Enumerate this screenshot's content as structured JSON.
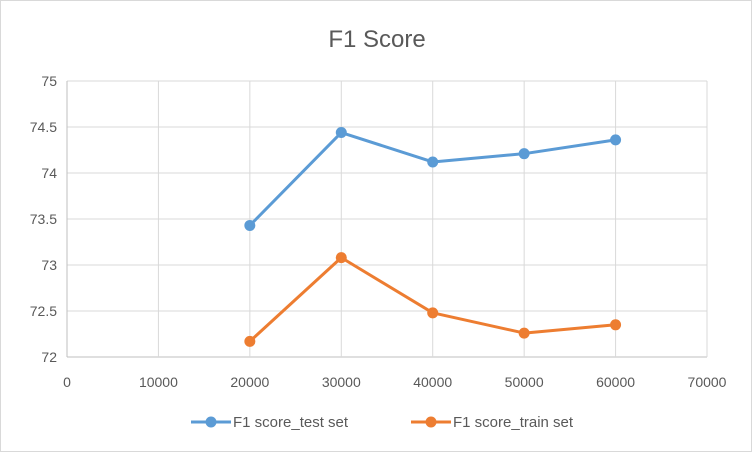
{
  "chart_data": {
    "type": "line",
    "title": "F1 Score",
    "xlabel": "",
    "ylabel": "",
    "xlim": [
      0,
      70000
    ],
    "ylim": [
      72,
      75
    ],
    "x_ticks": [
      0,
      10000,
      20000,
      30000,
      40000,
      50000,
      60000,
      70000
    ],
    "y_ticks": [
      72,
      72.5,
      73,
      73.5,
      74,
      74.5,
      75
    ],
    "grid": true,
    "legend_position": "bottom",
    "x": [
      20000,
      30000,
      40000,
      50000,
      60000
    ],
    "series": [
      {
        "name": "F1 score_test set",
        "color": "#5b9bd5",
        "values": [
          73.43,
          74.44,
          74.12,
          74.21,
          74.36
        ]
      },
      {
        "name": "F1 score_train set",
        "color": "#ed7d31",
        "values": [
          72.17,
          73.08,
          72.48,
          72.26,
          72.35
        ]
      }
    ]
  }
}
